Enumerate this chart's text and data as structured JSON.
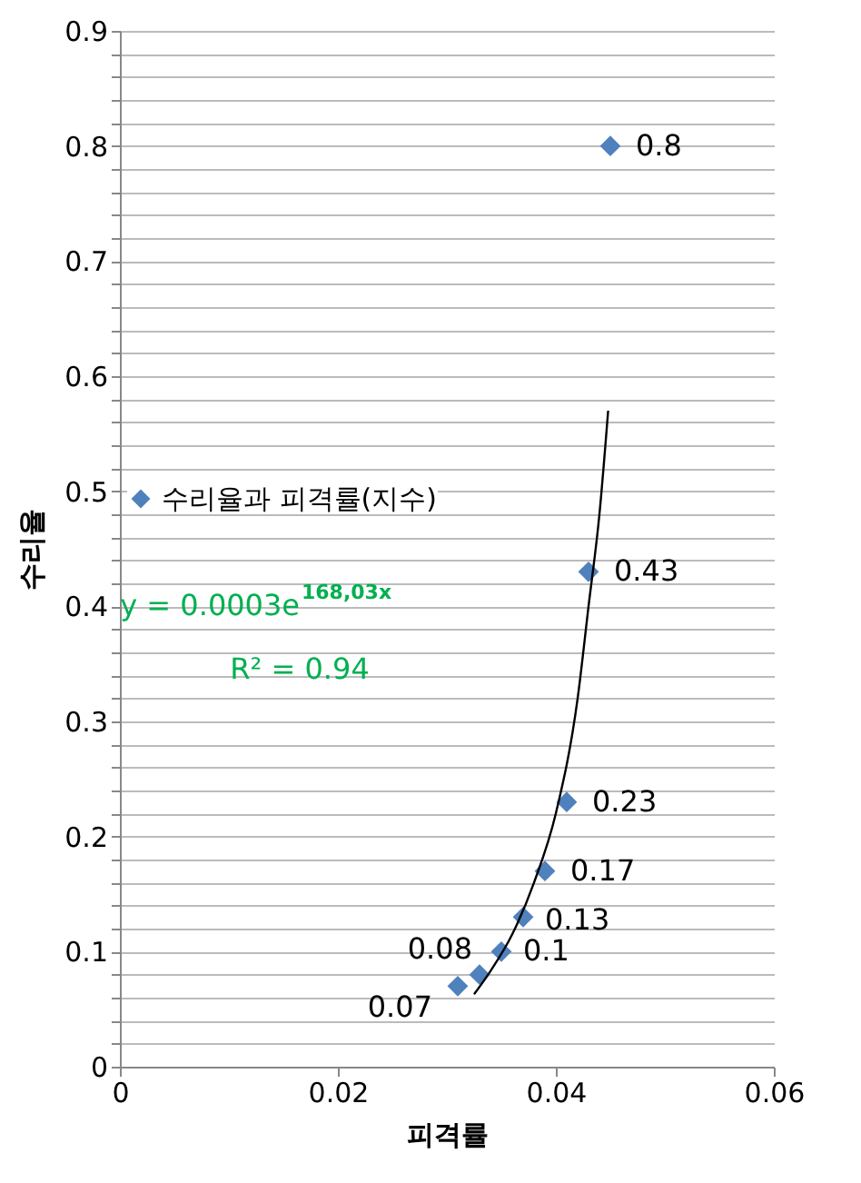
{
  "chart_data": {
    "type": "scatter",
    "xlabel": "피격률",
    "ylabel": "수리율",
    "xlim": [
      0,
      0.06
    ],
    "xticks": [
      0,
      0.02,
      0.04,
      0.06
    ],
    "ylim": [
      0,
      0.9
    ],
    "yticks": [
      0,
      {
        "value": 0.02,
        "label": null
      },
      {
        "value": 0.04,
        "label": null
      },
      {
        "value": 0.06,
        "label": null
      },
      {
        "value": 0.08,
        "label": null
      },
      0.1,
      {
        "value": 0.12,
        "label": null
      },
      {
        "value": 0.14,
        "label": null
      },
      {
        "value": 0.16,
        "label": null
      },
      {
        "value": 0.18,
        "label": null
      },
      0.2,
      {
        "value": 0.22,
        "label": null
      },
      {
        "value": 0.24,
        "label": null
      },
      {
        "value": 0.26,
        "label": null
      },
      {
        "value": 0.28,
        "label": null
      },
      0.3,
      {
        "value": 0.32,
        "label": null
      },
      {
        "value": 0.34,
        "label": null
      },
      {
        "value": 0.36,
        "label": null
      },
      {
        "value": 0.38,
        "label": null
      },
      0.4,
      {
        "value": 0.42,
        "label": null
      },
      {
        "value": 0.44,
        "label": null
      },
      {
        "value": 0.46,
        "label": null
      },
      {
        "value": 0.48,
        "label": null
      },
      0.5,
      {
        "value": 0.52,
        "label": null
      },
      {
        "value": 0.54,
        "label": null
      },
      {
        "value": 0.56,
        "label": null
      },
      {
        "value": 0.58,
        "label": null
      },
      0.6,
      {
        "value": 0.62,
        "label": null
      },
      {
        "value": 0.64,
        "label": null
      },
      {
        "value": 0.66,
        "label": null
      },
      {
        "value": 0.68,
        "label": null
      },
      0.7,
      {
        "value": 0.72,
        "label": null
      },
      {
        "value": 0.74,
        "label": null
      },
      {
        "value": 0.76,
        "label": null
      },
      {
        "value": 0.78,
        "label": null
      },
      0.8,
      {
        "value": 0.82,
        "label": null
      },
      {
        "value": 0.84,
        "label": null
      },
      {
        "value": 0.86,
        "label": null
      },
      {
        "value": 0.88,
        "label": null
      },
      0.9
    ],
    "grid": "y",
    "legend": "left",
    "marker": "diamond",
    "annotations": [
      "y = 0.0003e$^{168,03x}$",
      "R² = 0.94"
    ],
    "series": [
      {
        "name": "수리율과 피격률(지수)",
        "color": "#4f81bd",
        "x": [
          0.031,
          0.033,
          0.035,
          0.037,
          0.039,
          0.041,
          0.043,
          0.045
        ],
        "values": [
          0.07,
          0.08,
          0.1,
          0.13,
          0.17,
          0.23,
          0.43,
          0.8
        ],
        "value_labels": [
          "0.07",
          "0.08",
          "0.1",
          "0.13",
          "0.17",
          "0.23",
          "0.43",
          "0.8"
        ]
      },
      {
        "type": "line",
        "marker": "none",
        "color": "#000000",
        "x": [
          0.0325,
          0.034,
          0.036,
          0.038,
          0.04,
          0.042,
          0.043,
          0.044,
          0.0448
        ],
        "values": [
          0.063,
          0.083,
          0.115,
          0.16,
          0.22,
          0.32,
          0.4,
          0.48,
          0.57
        ]
      }
    ]
  }
}
